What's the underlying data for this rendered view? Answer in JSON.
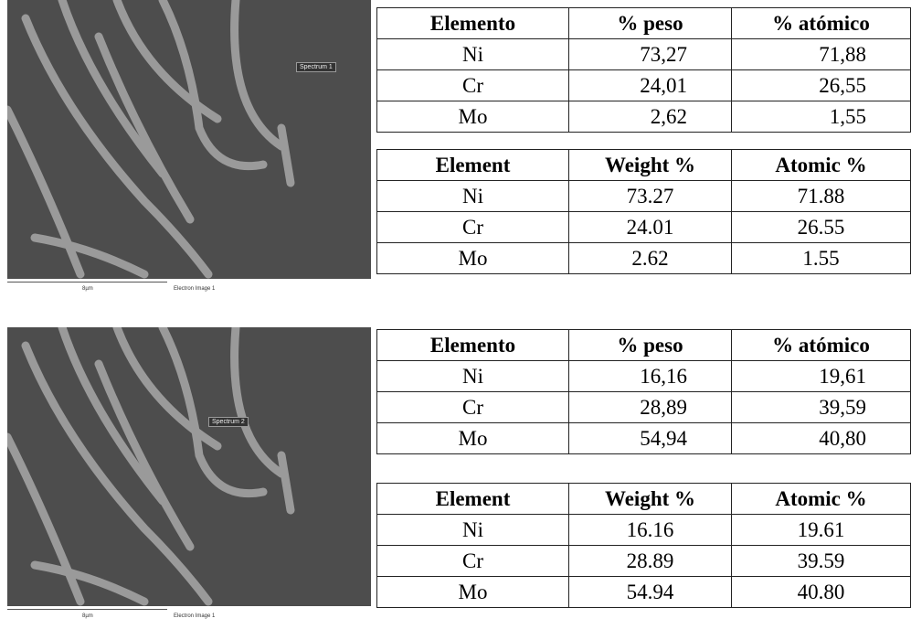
{
  "panels": [
    {
      "image": {
        "label": "Spectrum 1",
        "scale": "8µm",
        "caption": "Electron Image 1"
      },
      "tables": [
        {
          "header": [
            "Elemento",
            "% peso",
            "% atómico"
          ],
          "rows": [
            [
              "Ni",
              "73,27",
              "71,88"
            ],
            [
              "Cr",
              "24,01",
              "26,55"
            ],
            [
              "Mo",
              "2,62",
              "1,55"
            ]
          ]
        },
        {
          "header": [
            "Element",
            "Weight %",
            "Atomic %"
          ],
          "rows": [
            [
              "Ni",
              "73.27",
              "71.88"
            ],
            [
              "Cr",
              "24.01",
              "26.55"
            ],
            [
              "Mo",
              "2.62",
              "1.55"
            ]
          ]
        }
      ]
    },
    {
      "image": {
        "label": "Spectrum 2",
        "scale": "8µm",
        "caption": "Electron Image 1"
      },
      "tables": [
        {
          "header": [
            "Elemento",
            "% peso",
            "% atómico"
          ],
          "rows": [
            [
              "Ni",
              "16,16",
              "19,61"
            ],
            [
              "Cr",
              "28,89",
              "39,59"
            ],
            [
              "Mo",
              "54,94",
              "40,80"
            ]
          ]
        },
        {
          "header": [
            "Element",
            "Weight %",
            "Atomic %"
          ],
          "rows": [
            [
              "Ni",
              "16.16",
              "19.61"
            ],
            [
              "Cr",
              "28.89",
              "39.59"
            ],
            [
              "Mo",
              "54.94",
              "40.80"
            ]
          ]
        }
      ]
    }
  ]
}
